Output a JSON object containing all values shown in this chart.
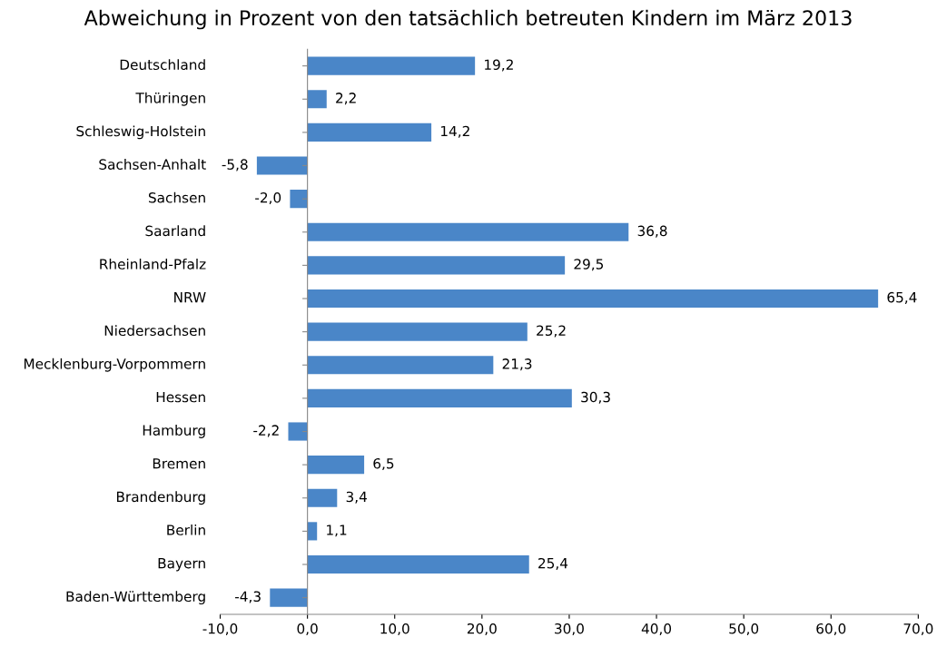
{
  "chart_data": {
    "type": "bar",
    "orientation": "horizontal",
    "title": "Abweichung in Prozent von den tatsächlich betreuten Kindern im März 2013",
    "categories": [
      "Deutschland",
      "Thüringen",
      "Schleswig-Holstein",
      "Sachsen-Anhalt",
      "Sachsen",
      "Saarland",
      "Rheinland-Pfalz",
      "NRW",
      "Niedersachsen",
      "Mecklenburg-Vorpommern",
      "Hessen",
      "Hamburg",
      "Bremen",
      "Brandenburg",
      "Berlin",
      "Bayern",
      "Baden-Württemberg"
    ],
    "values": [
      19.2,
      2.2,
      14.2,
      -5.8,
      -2.0,
      36.8,
      29.5,
      65.4,
      25.2,
      21.3,
      30.3,
      -2.2,
      6.5,
      3.4,
      1.1,
      25.4,
      -4.3
    ],
    "value_labels": [
      "19,2",
      "2,2",
      "14,2",
      "-5,8",
      "-2,0",
      "36,8",
      "29,5",
      "65,4",
      "25,2",
      "21,3",
      "30,3",
      "-2,2",
      "6,5",
      "3,4",
      "1,1",
      "25,4",
      "-4,3"
    ],
    "color": "#4a86c8",
    "xlim": [
      -10,
      70
    ],
    "xticks": [
      {
        "value": -10,
        "label": "-10,0"
      },
      {
        "value": 0,
        "label": "0,0"
      },
      {
        "value": 10,
        "label": "10,0"
      },
      {
        "value": 20,
        "label": "20,0"
      },
      {
        "value": 30,
        "label": "30,0"
      },
      {
        "value": 40,
        "label": "40,0"
      },
      {
        "value": 50,
        "label": "50,0"
      },
      {
        "value": 60,
        "label": "60,0"
      },
      {
        "value": 70,
        "label": "70,0"
      }
    ],
    "legend": false
  }
}
